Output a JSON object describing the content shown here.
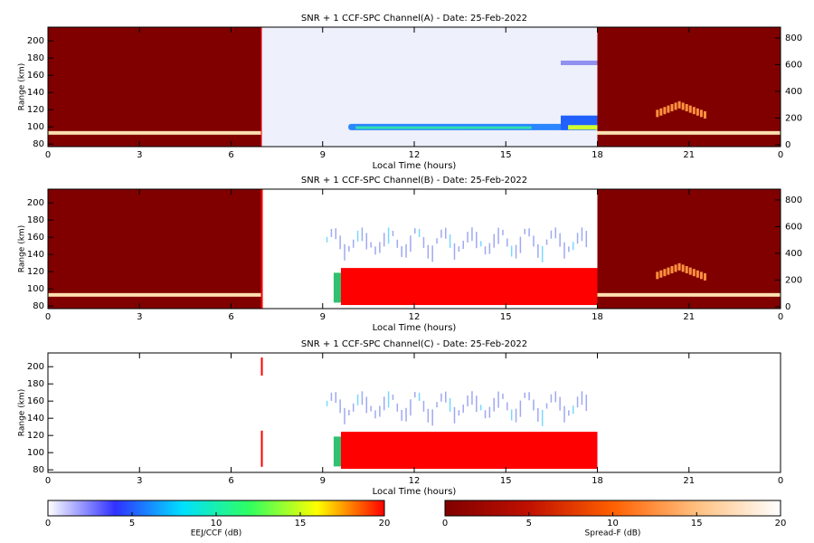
{
  "chart_data": [
    {
      "type": "heatmap",
      "title": "SNR + 1 CCF-SPC Channel(A) - Date: 25-Feb-2022",
      "xlabel": "Local Time (hours)",
      "ylabel": "Range (km)",
      "xlim": [
        0,
        24
      ],
      "xticks": [
        0,
        3,
        6,
        9,
        12,
        15,
        18,
        21,
        {
          "value": 24,
          "label": "0"
        }
      ],
      "ylim": [
        77,
        216
      ],
      "yticks": [
        80,
        100,
        120,
        140,
        160,
        180,
        200
      ],
      "y2lim": [
        -14,
        881
      ],
      "y2ticks": [
        0,
        200,
        400,
        600,
        800
      ]
    },
    {
      "type": "heatmap",
      "title": "SNR + 1 CCF-SPC Channel(B) - Date: 25-Feb-2022",
      "xlabel": "Local Time (hours)",
      "ylabel": "Range (km)",
      "xlim": [
        0,
        24
      ],
      "xticks": [
        0,
        3,
        6,
        9,
        12,
        15,
        18,
        21,
        {
          "value": 24,
          "label": "0"
        }
      ],
      "ylim": [
        77,
        216
      ],
      "yticks": [
        80,
        100,
        120,
        140,
        160,
        180,
        200
      ],
      "y2lim": [
        -14,
        881
      ],
      "y2ticks": [
        0,
        200,
        400,
        600,
        800
      ]
    },
    {
      "type": "heatmap",
      "title": "SNR + 1 CCF-SPC Channel(C) - Date: 25-Feb-2022",
      "xlabel": "Local Time (hours)",
      "ylabel": "Range (km)",
      "xlim": [
        0,
        24
      ],
      "xticks": [
        0,
        3,
        6,
        9,
        12,
        15,
        18,
        21,
        {
          "value": 24,
          "label": "0"
        }
      ],
      "ylim": [
        77,
        216
      ],
      "yticks": [
        80,
        100,
        120,
        140,
        160,
        180,
        200
      ]
    },
    {
      "type": "colorbar",
      "label": "EEJ/CCF (dB)",
      "xlim": [
        0,
        20
      ],
      "xticks": [
        0,
        5,
        10,
        15,
        20
      ],
      "colors": [
        "#ffffff",
        "#3030ff",
        "#00e0ff",
        "#30ff60",
        "#ffff00",
        "#ff0000"
      ]
    },
    {
      "type": "colorbar",
      "label": "Spread-F (dB)",
      "xlim": [
        0,
        20
      ],
      "xticks": [
        0,
        5,
        10,
        15,
        20
      ],
      "colors": [
        "#800000",
        "#c01000",
        "#ff6000",
        "#ffc080",
        "#ffffff"
      ]
    }
  ]
}
